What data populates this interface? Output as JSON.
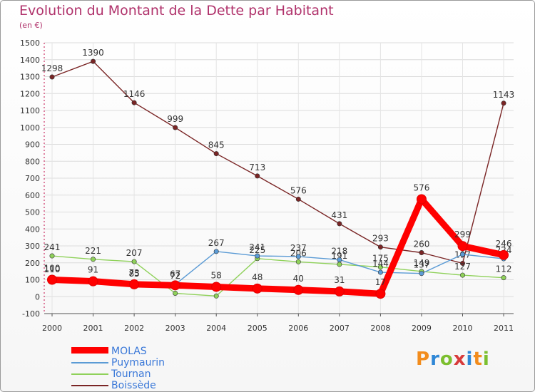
{
  "title": "Evolution du Montant de la Dette par Habitant",
  "subtitle": "(en €)",
  "logo": {
    "text": "Proxiti",
    "letters": [
      {
        "ch": "P",
        "color": "#f28c1c"
      },
      {
        "ch": "r",
        "color": "#2f87d6"
      },
      {
        "ch": "o",
        "color": "#7cbf2f"
      },
      {
        "ch": "x",
        "color": "#d83b3b"
      },
      {
        "ch": "i",
        "color": "#2f87d6"
      },
      {
        "ch": "t",
        "color": "#f28c1c"
      },
      {
        "ch": "i",
        "color": "#7cbf2f"
      }
    ]
  },
  "chart_data": {
    "type": "line",
    "categories": [
      "2000",
      "2001",
      "2002",
      "2003",
      "2004",
      "2005",
      "2006",
      "2007",
      "2008",
      "2009",
      "2010",
      "2011"
    ],
    "ylim": [
      -100,
      1500
    ],
    "yticks": [
      "-100",
      "0",
      "100",
      "200",
      "300",
      "400",
      "500",
      "600",
      "700",
      "800",
      "900",
      "1000",
      "1100",
      "1200",
      "1300",
      "1400",
      "1500"
    ],
    "grid": true,
    "legend_position": "bottom-left",
    "series": [
      {
        "name": "Boissède",
        "color": "#7a2525",
        "values": [
          1298,
          1390,
          1146,
          999,
          845,
          713,
          576,
          431,
          293,
          260,
          197,
          1143
        ],
        "labels": [
          "1298",
          "1390",
          "1146",
          "999",
          "845",
          "713",
          "576",
          "431",
          "293",
          "260",
          "197",
          "1143"
        ]
      },
      {
        "name": "Tournan",
        "color": "#8fd15a",
        "values": [
          241,
          221,
          207,
          20,
          4,
          225,
          206,
          191,
          175,
          149,
          127,
          112
        ],
        "labels": [
          "241",
          "221",
          "207",
          "",
          "",
          "225",
          "206",
          "191",
          "175",
          "149",
          "127",
          "112"
        ]
      },
      {
        "name": "Puymaurin",
        "color": "#5b9bd5",
        "values": [
          110,
          95,
          85,
          72,
          267,
          241,
          237,
          218,
          144,
          137,
          250,
          224
        ],
        "labels": [
          "110",
          "",
          "85",
          "72",
          "267",
          "241",
          "237",
          "218",
          "144",
          "137",
          "",
          "224"
        ]
      },
      {
        "name": "MOLAS",
        "color": "#ff0000",
        "values": [
          100,
          91,
          73,
          67,
          58,
          48,
          40,
          31,
          17,
          576,
          299,
          246
        ],
        "labels": [
          "100",
          "91",
          "73",
          "67",
          "58",
          "48",
          "40",
          "31",
          "17",
          "576",
          "299",
          "246"
        ]
      }
    ],
    "legend_order": [
      "MOLAS",
      "Puymaurin",
      "Tournan",
      "Boissède"
    ]
  }
}
